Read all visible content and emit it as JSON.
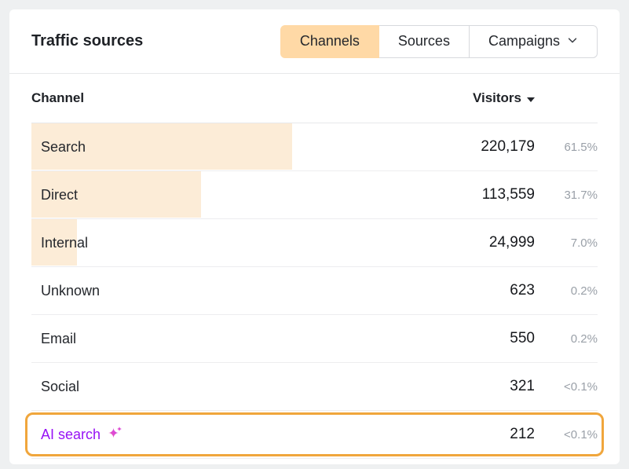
{
  "header": {
    "title": "Traffic sources"
  },
  "tabs": [
    {
      "label": "Channels",
      "active": true
    },
    {
      "label": "Sources",
      "active": false
    },
    {
      "label": "Campaigns",
      "active": false,
      "has_dropdown": true
    }
  ],
  "table": {
    "channel_header": "Channel",
    "visitors_header": "Visitors",
    "sort": "descending",
    "rows": [
      {
        "channel": "Search",
        "visitors": "220,179",
        "share": "61.5%",
        "bar_pct": 46
      },
      {
        "channel": "Direct",
        "visitors": "113,559",
        "share": "31.7%",
        "bar_pct": 30
      },
      {
        "channel": "Internal",
        "visitors": "24,999",
        "share": "7.0%",
        "bar_pct": 8
      },
      {
        "channel": "Unknown",
        "visitors": "623",
        "share": "0.2%",
        "bar_pct": 0
      },
      {
        "channel": "Email",
        "visitors": "550",
        "share": "0.2%",
        "bar_pct": 0
      },
      {
        "channel": "Social",
        "visitors": "321",
        "share": "<0.1%",
        "bar_pct": 0
      },
      {
        "channel": "AI search",
        "visitors": "212",
        "share": "<0.1%",
        "bar_pct": 0,
        "highlighted": true
      }
    ]
  },
  "colors": {
    "active_tab_bg": "#ffd9a6",
    "row_bar": "#fcecd7",
    "highlight_ring": "#f0a63c",
    "ai_text": "#9712f5",
    "sparkle_pink": "#f25ab1",
    "sparkle_purple": "#c93cf2",
    "share_text": "#9aa0a8"
  }
}
